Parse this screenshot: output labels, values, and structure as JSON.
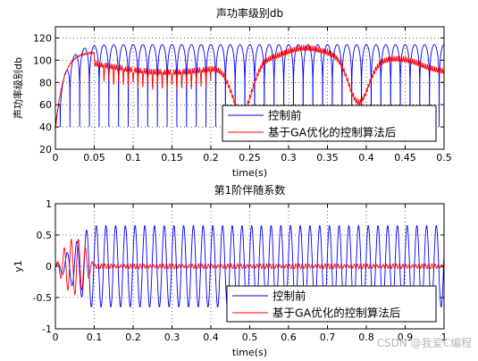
{
  "chart_data": [
    {
      "type": "line",
      "title": "声功率级别db",
      "xlabel": "time(s)",
      "ylabel": "声功率级别db",
      "xlim": [
        0,
        0.5
      ],
      "ylim": [
        20,
        130
      ],
      "xticks": [
        0,
        0.05,
        0.1,
        0.15,
        0.2,
        0.25,
        0.3,
        0.35,
        0.4,
        0.45,
        0.5
      ],
      "xtick_labels": [
        "0",
        "0.05",
        "0.1",
        "0.15",
        "0.2",
        "0.25",
        "0.3",
        "0.35",
        "0.4",
        "0.45",
        "0.5"
      ],
      "yticks": [
        20,
        40,
        60,
        80,
        100,
        120
      ],
      "ytick_labels": [
        "20",
        "40",
        "60",
        "80",
        "100",
        "120"
      ],
      "grid": true,
      "legend_position": "lower-right",
      "series": [
        {
          "name": "控制前",
          "color": "#0000ff",
          "description_values": {
            "envelope_db": 114,
            "notch_min_db": 40,
            "cycles": 40
          }
        },
        {
          "name": "基于GA优化的控制算法后",
          "color": "#ff0000",
          "description_values": {
            "envelope_min_db": 58,
            "envelope_max_db": 108,
            "dips_at": [
              0.24,
              0.39
            ]
          }
        }
      ]
    },
    {
      "type": "line",
      "title": "第1阶伴随系数",
      "xlabel": "time(s)",
      "ylabel": "y1",
      "xlim": [
        0,
        1
      ],
      "ylim": [
        -1,
        1
      ],
      "xticks": [
        0,
        0.1,
        0.2,
        0.3,
        0.4,
        0.5,
        0.6,
        0.7,
        0.8,
        0.9,
        1
      ],
      "xtick_labels": [
        "0",
        "0.1",
        "0.2",
        "0.3",
        "0.4",
        "0.5",
        "0.6",
        "0.7",
        "0.8",
        "0.9",
        "1"
      ],
      "yticks": [
        -1,
        -0.5,
        0,
        0.5,
        1
      ],
      "ytick_labels": [
        "-1",
        "-0.5",
        "0",
        "0.5",
        "1"
      ],
      "grid": true,
      "legend_position": "lower-right",
      "series": [
        {
          "name": "控制前",
          "color": "#0000ff",
          "description_values": {
            "amplitude": 0.65,
            "cycles": 40
          }
        },
        {
          "name": "基于GA优化的控制算法后",
          "color": "#ff0000",
          "description_values": {
            "amplitude_after_0_1s": 0.04
          }
        }
      ]
    }
  ],
  "watermark": "CSDN @我爱C编程"
}
